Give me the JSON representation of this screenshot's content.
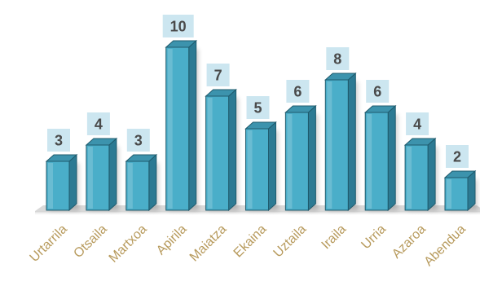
{
  "chart_data": {
    "type": "bar",
    "categories": [
      "Urtarrila",
      "Otsaila",
      "Martxoa",
      "Apirila",
      "Maiatza",
      "Ekaina",
      "Uztaila",
      "Iraila",
      "Urria",
      "Azaroa",
      "Abendua"
    ],
    "values": [
      3,
      4,
      3,
      10,
      7,
      5,
      6,
      8,
      6,
      4,
      2
    ],
    "title": "",
    "xlabel": "",
    "ylabel": "",
    "ylim": [
      0,
      10
    ],
    "grid": false,
    "legend": "none",
    "style": "3d-column"
  },
  "colors": {
    "bar_front": "#4aaec9",
    "bar_side": "#2c7a93",
    "bar_top": "#3c93ad",
    "bar_edge": "#1f5b6d",
    "label_box": "#c6e3ee",
    "label_text": "#4a4a4a",
    "category_text": "#b79a5c",
    "floor": "#d9d9d9"
  }
}
